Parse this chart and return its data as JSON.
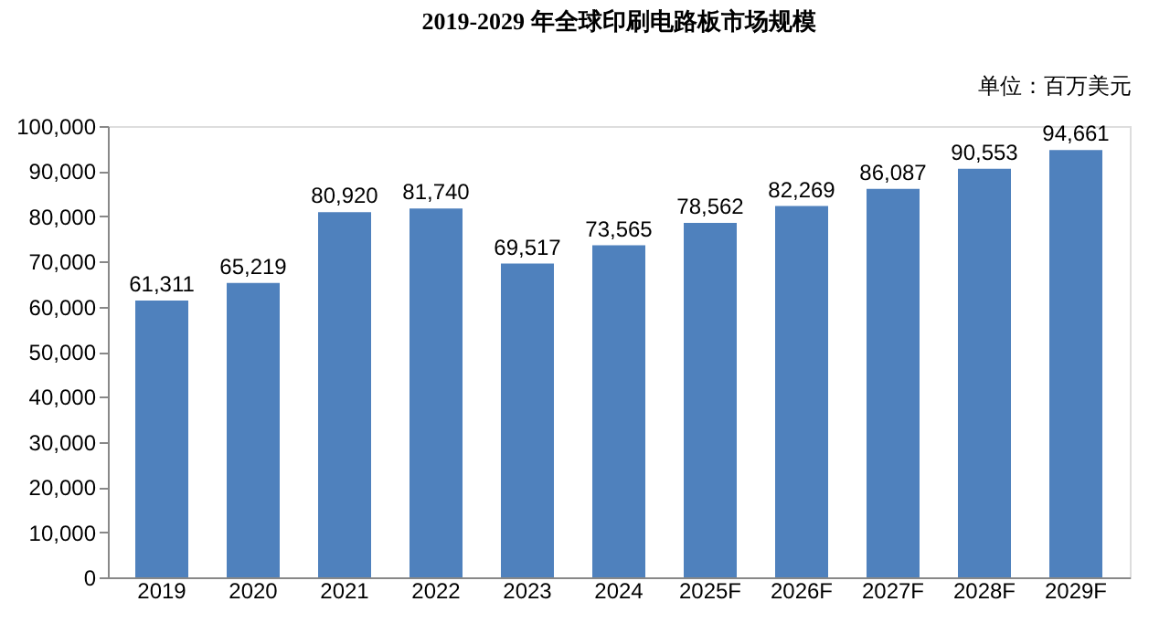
{
  "chart_data": {
    "type": "bar",
    "title": "2019-2029 年全球印刷电路板市场规模",
    "annotations": [
      "单位：百万美元"
    ],
    "categories": [
      "2019",
      "2020",
      "2021",
      "2022",
      "2023",
      "2024",
      "2025F",
      "2026F",
      "2027F",
      "2028F",
      "2029F"
    ],
    "values": [
      61311,
      65219,
      80920,
      81740,
      69517,
      73565,
      78562,
      82269,
      86087,
      90553,
      94661
    ],
    "value_labels": [
      "61,311",
      "65,219",
      "80,920",
      "81,740",
      "69,517",
      "73,565",
      "78,562",
      "82,269",
      "86,087",
      "90,553",
      "94,661"
    ],
    "color": "#4f81bd",
    "ylim": [
      0,
      100000
    ],
    "yticks": [
      0,
      {
        "value": 10000,
        "label": "10,000"
      },
      {
        "value": 20000,
        "label": "20,000"
      },
      {
        "value": 30000,
        "label": "30,000"
      },
      {
        "value": 40000,
        "label": "40,000"
      },
      {
        "value": 50000,
        "label": "50,000"
      },
      {
        "value": 60000,
        "label": "60,000"
      },
      {
        "value": 70000,
        "label": "70,000"
      },
      {
        "value": 80000,
        "label": "80,000"
      },
      {
        "value": 90000,
        "label": "90,000"
      },
      {
        "value": 100000,
        "label": "100,000"
      }
    ],
    "grid": false
  }
}
